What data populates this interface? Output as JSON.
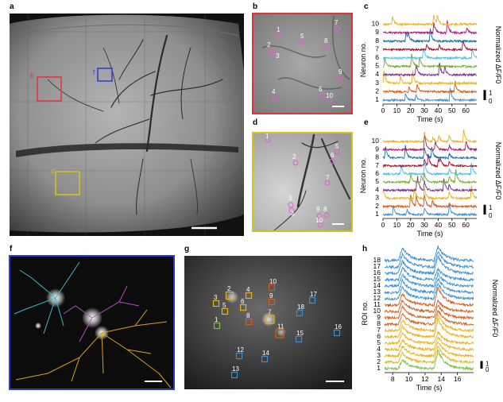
{
  "panel_labels": {
    "a": "a",
    "b": "b",
    "c": "c",
    "d": "d",
    "e": "e",
    "f": "f",
    "g": "g",
    "h": "h"
  },
  "panel_a": {
    "box_labels": [
      "b",
      "f",
      "d"
    ]
  },
  "panel_b": {
    "labels": [
      "1",
      "2",
      "3",
      "4",
      "5",
      "6",
      "7",
      "8",
      "9",
      "10"
    ]
  },
  "panel_d": {
    "labels": [
      "1",
      "2",
      "3",
      "4",
      "5",
      "6",
      "7",
      "8",
      "9",
      "10"
    ]
  },
  "panel_g": {
    "labels": [
      "1",
      "2",
      "3",
      "4",
      "5",
      "6",
      "7",
      "8",
      "9",
      "10",
      "11",
      "12",
      "13",
      "14",
      "15",
      "16",
      "17",
      "18"
    ]
  },
  "colors": {
    "red": "#e0323a",
    "blue": "#2a3cc8",
    "yellow": "#d8c21a",
    "trace_palette": [
      "#3a8fd0",
      "#d45a1c",
      "#e8b21e",
      "#7e2c8e",
      "#77ac30",
      "#4cbfe6",
      "#a2142f",
      "#1a6fa8",
      "#b01a6a",
      "#e8b21e"
    ],
    "roi_palette": [
      "#7fbf3f",
      "#e8b21e",
      "#e8b21e",
      "#e8b21e",
      "#e8b21e",
      "#e8b21e",
      "#e8b21e",
      "#d45a1c",
      "#d45a1c",
      "#d45a1c",
      "#d45a1c",
      "#3a8fd0",
      "#3a8fd0",
      "#3a8fd0",
      "#3a8fd0",
      "#3a8fd0",
      "#3a8fd0",
      "#3a8fd0"
    ]
  },
  "chart_data": [
    {
      "panel": "c",
      "type": "line",
      "xlabel": "Time (s)",
      "ylabel": "Neuron no.",
      "right_label": "Normalized ΔF/F0",
      "x_ticks": [
        0,
        10,
        20,
        30,
        40,
        50,
        60
      ],
      "xlim": [
        0,
        68
      ],
      "series_labels": [
        "1",
        "2",
        "3",
        "4",
        "5",
        "6",
        "7",
        "8",
        "9",
        "10"
      ],
      "scalebar": {
        "top": "1",
        "bottom": "0"
      }
    },
    {
      "panel": "e",
      "type": "line",
      "xlabel": "Time (s)",
      "ylabel": "Neuron no.",
      "right_label": "Normalized ΔF/F0",
      "x_ticks": [
        0,
        10,
        20,
        30,
        40,
        50,
        60
      ],
      "xlim": [
        0,
        68
      ],
      "series_labels": [
        "1",
        "2",
        "3",
        "4",
        "5",
        "6",
        "7",
        "8",
        "9",
        "10"
      ],
      "scalebar": {
        "top": "1",
        "bottom": "0"
      }
    },
    {
      "panel": "h",
      "type": "line",
      "xlabel": "Time (s)",
      "ylabel": "ROI no.",
      "right_label": "Normalized ΔF/F0",
      "x_ticks": [
        8,
        10,
        12,
        14,
        16
      ],
      "xlim": [
        7,
        18
      ],
      "series_labels": [
        "1",
        "2",
        "3",
        "4",
        "5",
        "6",
        "7",
        "8",
        "9",
        "10",
        "11",
        "12",
        "13",
        "14",
        "15",
        "16",
        "17",
        "18"
      ],
      "scalebar": {
        "top": "1",
        "bottom": "0"
      }
    }
  ]
}
